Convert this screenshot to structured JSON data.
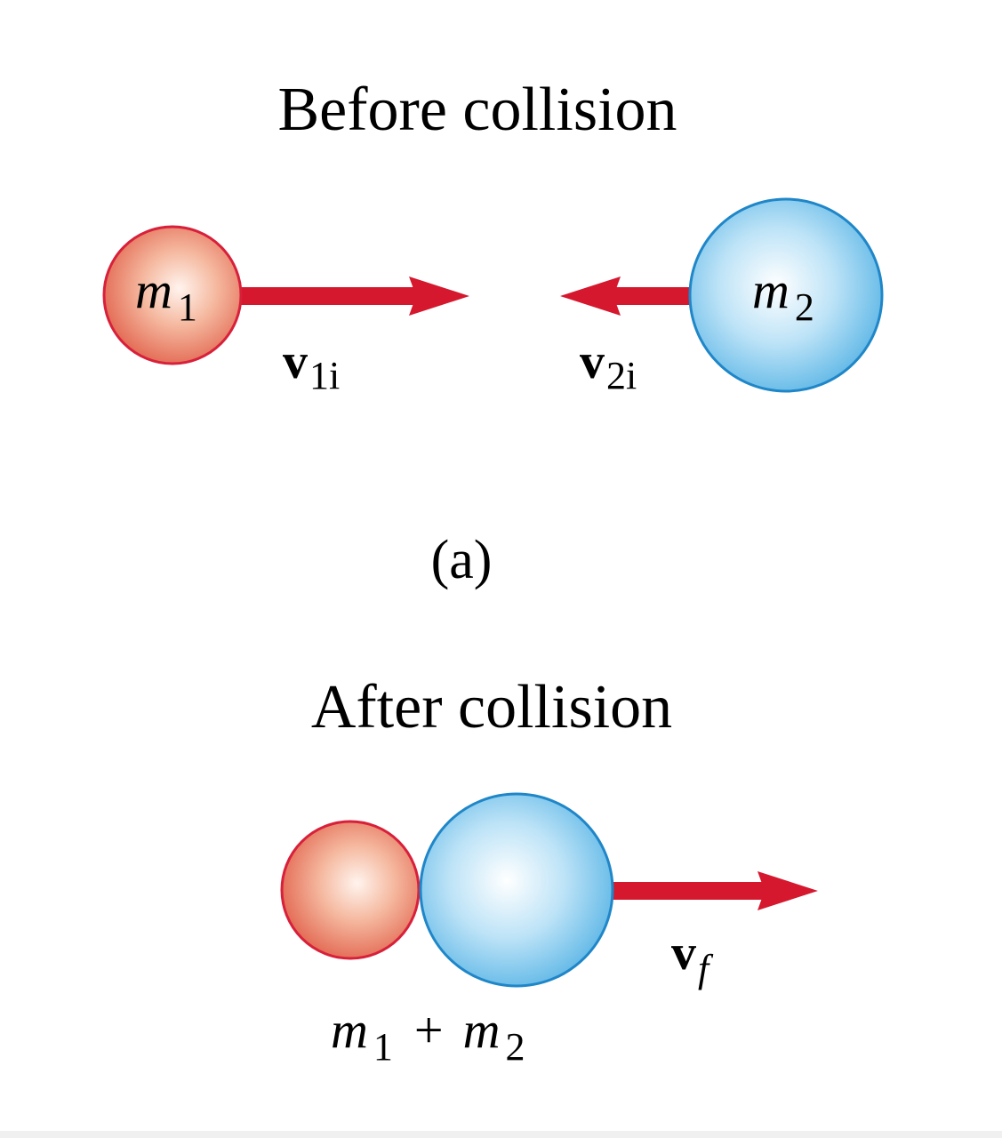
{
  "before": {
    "title": "Before collision",
    "mass1": {
      "symbol": "m",
      "sub": "1"
    },
    "mass2": {
      "symbol": "m",
      "sub": "2"
    },
    "velocity1": {
      "symbol": "v",
      "sub": "1i"
    },
    "velocity2": {
      "symbol": "v",
      "sub": "2i"
    }
  },
  "panel_label": "(a)",
  "after": {
    "title": "After collision",
    "combined": {
      "symbol1": "m",
      "sub1": "1",
      "plus": "+",
      "symbol2": "m",
      "sub2": "2"
    },
    "velocity": {
      "symbol": "v",
      "sub": "f"
    }
  },
  "colors": {
    "arrow": "#d5182e",
    "sphere1_outline": "#d8203a",
    "sphere2_outline": "#1f86c8"
  },
  "icons": {
    "sphere1": "orange-sphere",
    "sphere2": "blue-sphere",
    "arrow": "red-arrow"
  }
}
